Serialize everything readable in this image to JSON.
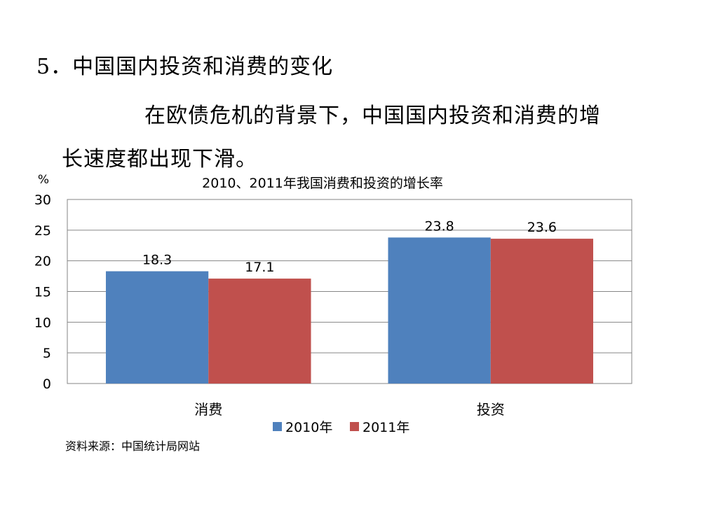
{
  "heading": "5．中国国内投资和消费的变化",
  "paragraph_line1": "在欧债危机的背景下，中国国内投资和消费的增",
  "paragraph_line2": "长速度都出现下滑。",
  "source": "资料来源：中国统计局网站",
  "colors": {
    "series_2010": "#4F81BD",
    "series_2011": "#C0504D",
    "grid": "#868686",
    "frame": "#868686"
  },
  "chart_data": {
    "type": "bar",
    "title": "2010、2011年我国消费和投资的增长率",
    "ylabel": "%",
    "xlabel": "",
    "categories": [
      "消费",
      "投资"
    ],
    "series": [
      {
        "name": "2010年",
        "values": [
          18.3,
          23.8
        ]
      },
      {
        "name": "2011年",
        "values": [
          17.1,
          23.6
        ]
      }
    ],
    "ylim": [
      0,
      30
    ],
    "yticks": [
      0,
      5,
      10,
      15,
      20,
      25,
      30
    ],
    "data_labels": true,
    "grid": true,
    "legend": "bottom"
  }
}
